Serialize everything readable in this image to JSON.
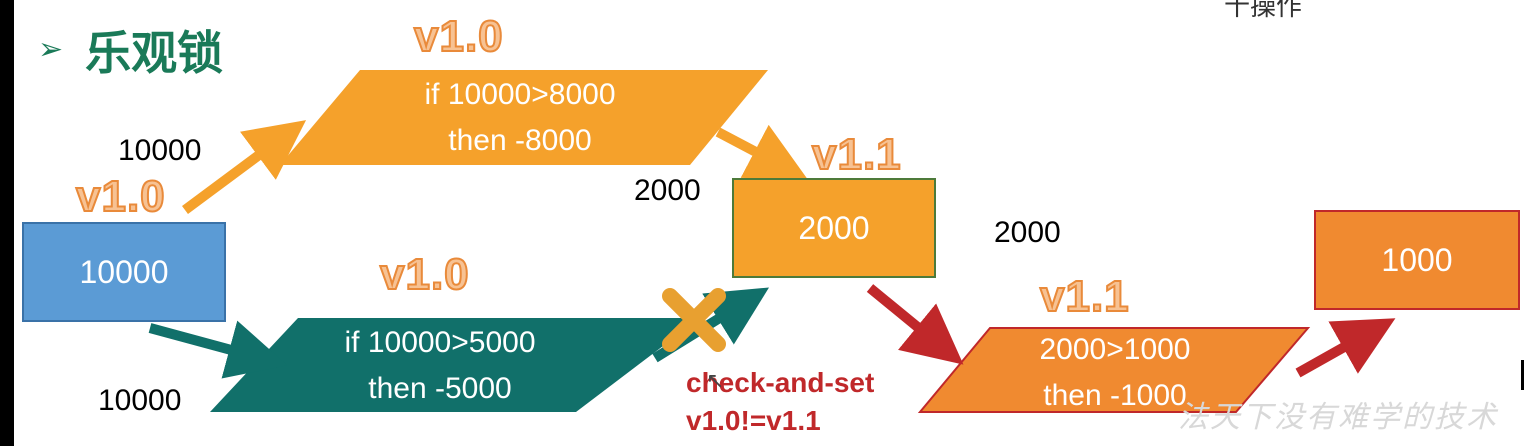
{
  "heading": {
    "bullet": "➢",
    "title": "乐观锁"
  },
  "corner_fragment": "十操作",
  "versions": {
    "v_top": "v1.0",
    "v_left": "v1.0",
    "v_mid": "v1.0",
    "v_center": "v1.1",
    "v_lower_right": "v1.1"
  },
  "values": {
    "upper_in": "10000",
    "lower_in": "10000",
    "center_in": "2000",
    "right_in": "2000"
  },
  "nodes": {
    "source": "10000",
    "middle": "2000",
    "result": "1000"
  },
  "operations": {
    "op1": {
      "line1": "if 10000>8000",
      "line2": "then -8000"
    },
    "op2": {
      "line1": "if 10000>5000",
      "line2": "then -5000"
    },
    "op3": {
      "line1": "2000>1000",
      "line2": "then -1000"
    }
  },
  "check": {
    "line1": "check-and-set",
    "line2": "v1.0!=v1.1"
  },
  "watermark": "法天下没有难学的技术",
  "colors": {
    "orange": "#f5a12b",
    "orange_dark": "#f08a30",
    "blue": "#5b9bd5",
    "teal": "#11706a",
    "red": "#c0282a",
    "green_title": "#1a7a58"
  },
  "icons": {
    "cursor": "mouse-pointer-icon",
    "reject": "cross-icon"
  }
}
